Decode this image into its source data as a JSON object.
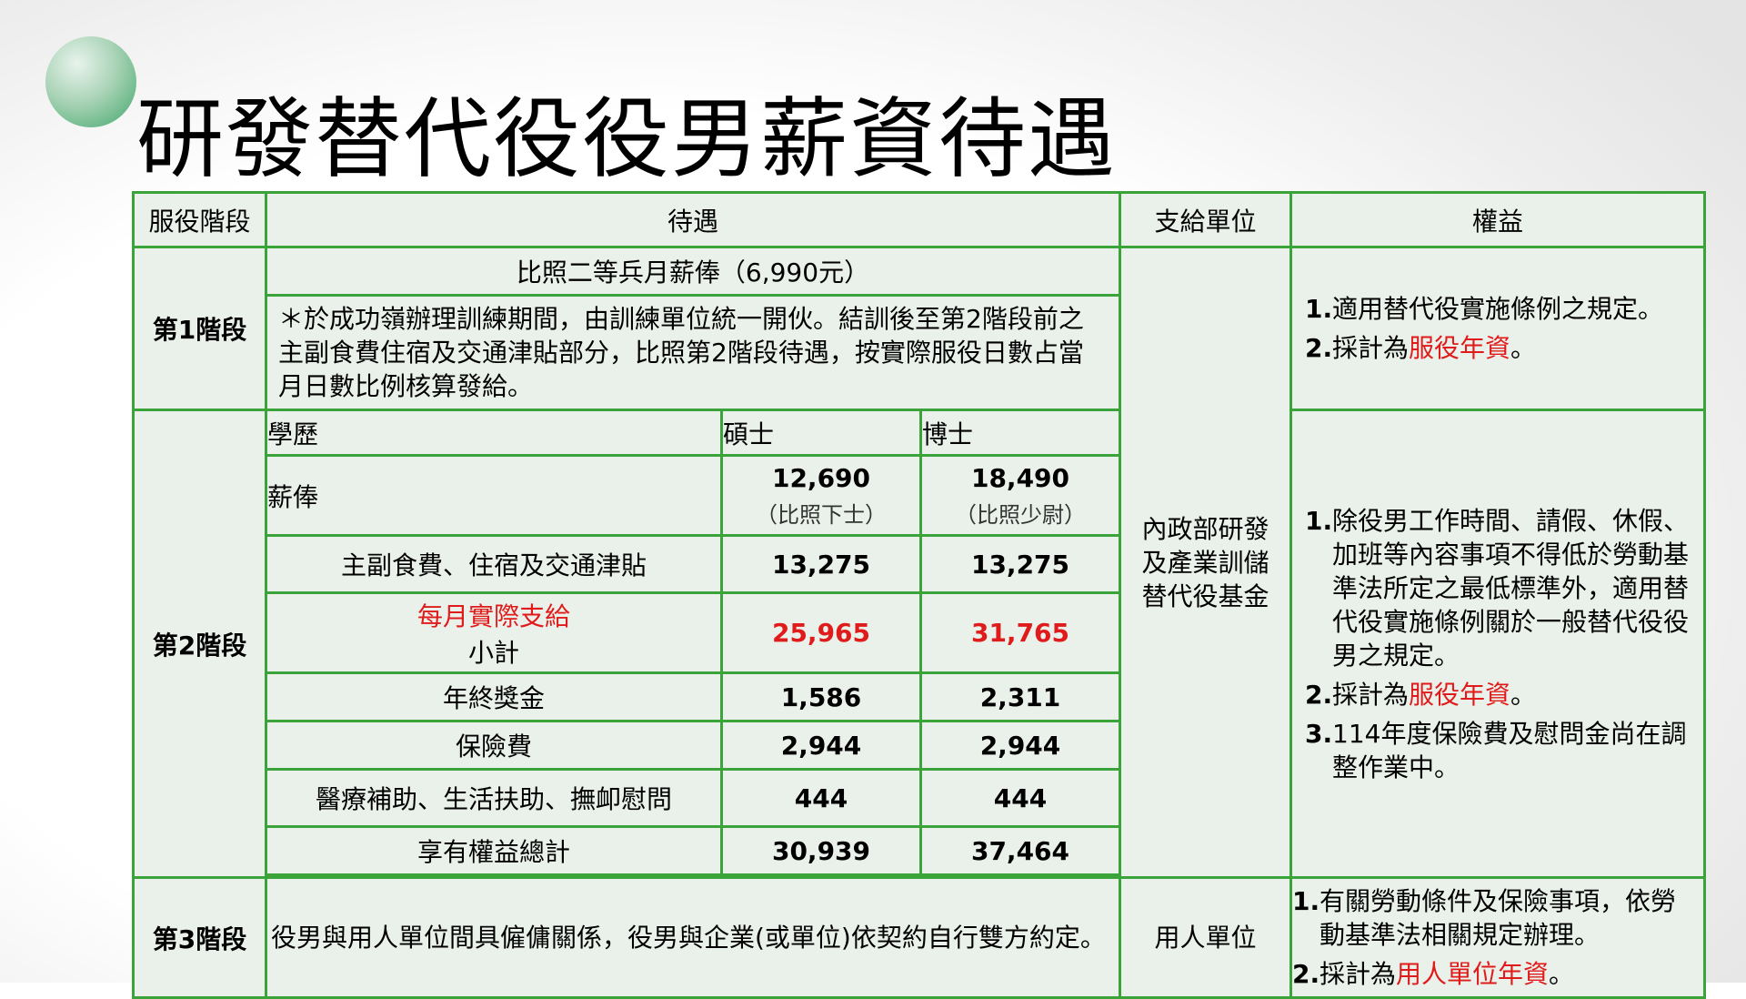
{
  "title": "研發替代役役男薪資待遇",
  "colors": {
    "border": "#3aa33a",
    "cell_bg": "#eaf1ea",
    "highlight": "#e01b1b"
  },
  "headers": {
    "stage": "服役階段",
    "treatment": "待遇",
    "payer": "支給單位",
    "rights": "權益"
  },
  "stage1": {
    "label": "第1階段",
    "pay": "比照二等兵月薪俸（6,990元）",
    "note": "＊於成功嶺辦理訓練期間，由訓練單位統一開伙。結訓後至第2階段前之主副食費住宿及交通津貼部分，比照第2階段待遇，按實際服役日數占當月日數比例核算發給。",
    "rights": [
      {
        "num": "1.",
        "text": "適用替代役實施條例之規定。",
        "highlight": ""
      },
      {
        "num": "2.",
        "text": "採計為",
        "highlight": "服役年資",
        "tail": "。"
      }
    ]
  },
  "stage2": {
    "label": "第2階段",
    "columns": {
      "edu": "學歷",
      "master": "碩士",
      "phd": "博士"
    },
    "salary": {
      "label": "薪俸",
      "master": "12,690",
      "master_note": "（比照下士）",
      "phd": "18,490",
      "phd_note": "（比照少尉）"
    },
    "allowance": {
      "label": "主副食費、住宿及交通津貼",
      "master": "13,275",
      "phd": "13,275"
    },
    "subtotal": {
      "label_red": "每月實際支給",
      "label": "小計",
      "master": "25,965",
      "phd": "31,765"
    },
    "bonus": {
      "label": "年終獎金",
      "master": "1,586",
      "phd": "2,311"
    },
    "insurance": {
      "label": "保險費",
      "master": "2,944",
      "phd": "2,944"
    },
    "medical": {
      "label": "醫療補助、生活扶助、撫卹慰問",
      "master": "444",
      "phd": "444"
    },
    "total": {
      "label": "享有權益總計",
      "master": "30,939",
      "phd": "37,464"
    },
    "rights": [
      {
        "num": "1.",
        "text": "除役男工作時間、請假、休假、加班等內容事項不得低於勞動基準法所定之最低標準外，適用替代役實施條例關於一般替代役役男之規定。"
      },
      {
        "num": "2.",
        "text": "採計為",
        "highlight": "服役年資",
        "tail": "。"
      },
      {
        "num": "3.",
        "text": "114年度保險費及慰問金尚在調整作業中。"
      }
    ]
  },
  "payer_12": "內政部研發及產業訓儲替代役基金",
  "stage3": {
    "label": "第3階段",
    "treatment": "役男與用人單位間具僱傭關係，役男與企業(或單位)依契約自行雙方約定。",
    "payer": "用人單位",
    "rights": [
      {
        "num": "1.",
        "text": "有關勞動條件及保險事項，依勞動基準法相關規定辦理。"
      },
      {
        "num": "2.",
        "text": "採計為",
        "highlight": "用人單位年資",
        "tail": "。"
      }
    ]
  }
}
